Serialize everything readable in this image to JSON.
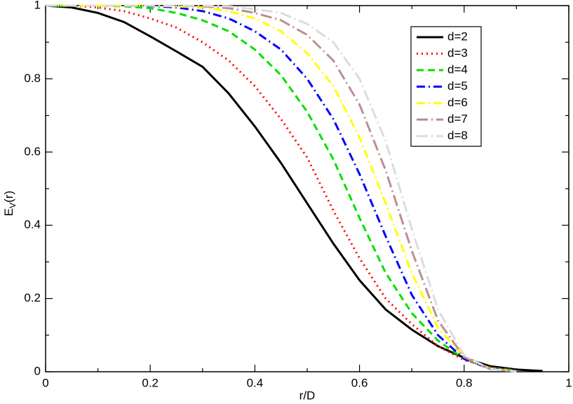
{
  "chart_data": {
    "type": "line",
    "xlabel": "r/D",
    "ylabel": {
      "text": "E",
      "subscript": "V",
      "suffix": "(r)"
    },
    "x": [
      0,
      0.05,
      0.1,
      0.15,
      0.2,
      0.25,
      0.3,
      0.35,
      0.4,
      0.45,
      0.5,
      0.55,
      0.6,
      0.65,
      0.7,
      0.75,
      0.8,
      0.85,
      0.9,
      0.95
    ],
    "series": [
      {
        "name": "d=2",
        "color": "#000000",
        "dash": "solid",
        "values": [
          1,
          0.995,
          0.98,
          0.955,
          0.916,
          0.875,
          0.833,
          0.76,
          0.67,
          0.57,
          0.46,
          0.35,
          0.25,
          0.17,
          0.115,
          0.07,
          0.038,
          0.015,
          0.006,
          0.002
        ]
      },
      {
        "name": "d=3",
        "color": "#ff0000",
        "dash": "dot",
        "values": [
          1,
          1,
          0.995,
          0.985,
          0.965,
          0.94,
          0.9,
          0.85,
          0.78,
          0.69,
          0.585,
          0.44,
          0.31,
          0.2,
          0.13,
          0.07,
          0.032,
          0.012,
          0.004,
          null
        ]
      },
      {
        "name": "d=4",
        "color": "#00e000",
        "dash": "dash",
        "values": [
          1,
          1,
          1,
          0.998,
          0.993,
          0.98,
          0.96,
          0.93,
          0.88,
          0.81,
          0.71,
          0.58,
          0.42,
          0.27,
          0.16,
          0.085,
          0.035,
          0.01,
          0.003,
          null
        ]
      },
      {
        "name": "d=5",
        "color": "#0000ff",
        "dash": "dashdot",
        "values": [
          1,
          1,
          1,
          1,
          0.999,
          0.995,
          0.985,
          0.965,
          0.93,
          0.88,
          0.8,
          0.69,
          0.54,
          0.37,
          0.21,
          0.1,
          0.035,
          0.008,
          0.002,
          null
        ]
      },
      {
        "name": "d=6",
        "color": "#ffff00",
        "dash": "dashdot",
        "values": [
          1,
          1,
          1,
          1,
          1,
          0.998,
          0.995,
          0.985,
          0.965,
          0.93,
          0.87,
          0.78,
          0.64,
          0.46,
          0.27,
          0.12,
          0.04,
          0.008,
          0.002,
          null
        ]
      },
      {
        "name": "d=7",
        "color": "#bc8f8f",
        "dash": "longdashdot",
        "values": [
          1,
          1,
          1,
          1,
          1,
          1,
          0.998,
          0.993,
          0.98,
          0.96,
          0.92,
          0.85,
          0.73,
          0.55,
          0.33,
          0.14,
          0.04,
          0.007,
          0.001,
          null
        ]
      },
      {
        "name": "d=8",
        "color": "#dcdcdc",
        "dash": "longdashdot",
        "values": [
          1,
          1,
          1,
          1,
          1,
          1,
          1,
          0.998,
          0.99,
          0.98,
          0.95,
          0.9,
          0.8,
          0.63,
          0.39,
          0.17,
          0.045,
          0.007,
          0.001,
          null
        ]
      }
    ],
    "xlim": [
      0,
      1
    ],
    "ylim": [
      0,
      1
    ],
    "xticks": [
      0,
      0.2,
      0.4,
      0.6,
      0.8,
      1
    ],
    "yticks": [
      0,
      0.2,
      0.4,
      0.6,
      0.8,
      1
    ],
    "xminorticks": [
      0.1,
      0.3,
      0.5,
      0.7,
      0.9
    ],
    "yminorticks": [
      0.1,
      0.3,
      0.5,
      0.7,
      0.9
    ],
    "legend": "upper-right"
  }
}
